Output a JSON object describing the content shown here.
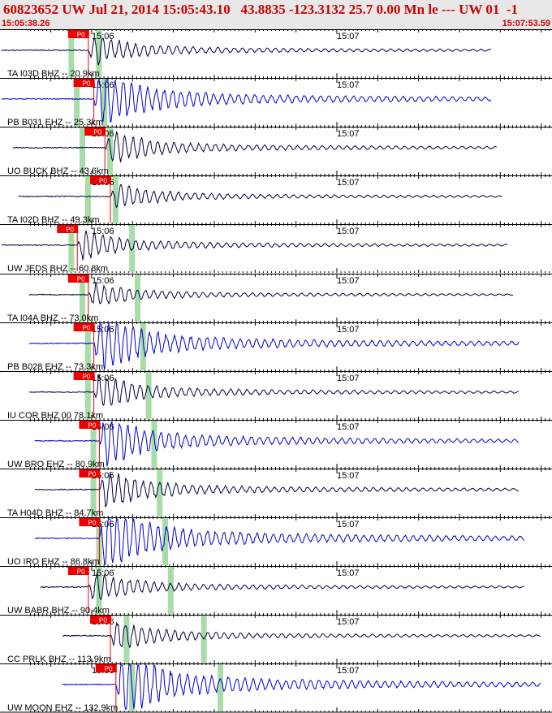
{
  "header": {
    "title": "60823652 UW Jul 21, 2014 15:05:43.10   43.8835 -123.3132 25.7 0.00 Mn le --- UW 01  -1",
    "start_time": "15:05:38.26",
    "end_time": "15:07:53.59"
  },
  "time_labels": [
    "15:06",
    "15:07"
  ],
  "pick_label": "P0",
  "colors": {
    "header_text": "#cc0000",
    "trace_navy": "#000040",
    "trace_blue": "#0000cc",
    "pick_marker": "#ee0000",
    "window_band": "#a8dca8",
    "header_bg": "#e8e8e8"
  },
  "channels": [
    {
      "label": "TA I03D BHZ -- 20.9km",
      "color": "navy",
      "amp": 7,
      "pick": 0.16,
      "window": [
        0.13,
        0.18
      ],
      "start": 0.0,
      "end": 0.89
    },
    {
      "label": "PB B031 EHZ -- 25.3km",
      "color": "blue",
      "amp": 14,
      "pick": 0.17,
      "window": [
        0.14,
        0.19
      ],
      "start": 0.0,
      "end": 0.89
    },
    {
      "label": "UO BUCK BHZ -- 43.6km",
      "color": "navy",
      "amp": 8,
      "pick": 0.19,
      "window": [
        0.15,
        0.2
      ],
      "start": 0.02,
      "end": 0.9
    },
    {
      "label": "TA I02D BHZ -- 49.3km",
      "color": "navy",
      "amp": 6,
      "pick": 0.2,
      "window": [
        0.16,
        0.21
      ],
      "start": 0.03,
      "end": 0.91
    },
    {
      "label": "UW JEDS BHZ -- 60.8km",
      "color": "navy",
      "amp": 7,
      "pick": 0.14,
      "window": [
        0.13,
        0.24
      ],
      "start": 0.0,
      "end": 0.92
    },
    {
      "label": "TA I04A BHZ -- 73.0km",
      "color": "navy",
      "amp": 6,
      "pick": 0.16,
      "window": [
        0.15,
        0.25
      ],
      "start": 0.05,
      "end": 0.93
    },
    {
      "label": "PB B028 EHZ -- 73.3km",
      "color": "blue",
      "amp": 14,
      "pick": 0.17,
      "window": [
        0.16,
        0.26
      ],
      "start": 0.05,
      "end": 0.94
    },
    {
      "label": "IU COR BHZ 00 78.1km",
      "color": "navy",
      "amp": 8,
      "pick": 0.17,
      "window": [
        0.16,
        0.27
      ],
      "start": 0.05,
      "end": 0.94
    },
    {
      "label": "UW BRO EHZ -- 80.9km",
      "color": "blue",
      "amp": 12,
      "pick": 0.18,
      "window": [
        0.17,
        0.28
      ],
      "start": 0.06,
      "end": 0.94
    },
    {
      "label": "TA H04D BHZ -- 84.7km",
      "color": "navy",
      "amp": 9,
      "pick": 0.18,
      "window": [
        0.17,
        0.29
      ],
      "start": 0.06,
      "end": 0.94
    },
    {
      "label": "UO IRO EHZ -- 86.8km",
      "color": "blue",
      "amp": 16,
      "pick": 0.18,
      "window": [
        0.18,
        0.3
      ],
      "start": 0.06,
      "end": 0.95
    },
    {
      "label": "UW BABR BHZ -- 90.4km",
      "color": "navy",
      "amp": 7,
      "pick": 0.16,
      "window": [
        0.18,
        0.31
      ],
      "start": 0.07,
      "end": 0.95
    },
    {
      "label": "CC PRLK BHZ -- 113.9km",
      "color": "navy",
      "amp": 7,
      "pick": 0.2,
      "window": [
        0.23,
        0.37
      ],
      "start": 0.11,
      "end": 0.98
    },
    {
      "label": "UW MOON EHZ -- 132.9km",
      "color": "blue",
      "amp": 16,
      "pick": 0.21,
      "window": [
        0.24,
        0.4
      ],
      "start": 0.11,
      "end": 0.98
    }
  ]
}
